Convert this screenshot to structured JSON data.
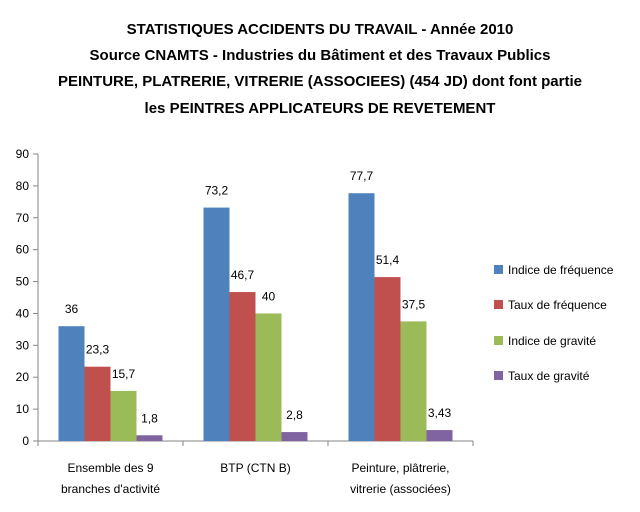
{
  "chart_data": {
    "type": "bar",
    "title_lines": [
      "STATISTIQUES ACCIDENTS DU TRAVAIL - Année 2010",
      "Source CNAMTS - Industries du Bâtiment et des Travaux Publics",
      "PEINTURE, PLATRERIE, VITRERIE (ASSOCIEES) (454 JD) dont font partie",
      "les PEINTRES APPLICATEURS DE REVETEMENT"
    ],
    "categories": [
      [
        "Ensemble des 9",
        "branches d'activité"
      ],
      [
        "BTP (CTN B)"
      ],
      [
        "Peinture, plâtrerie,",
        "vitrerie (associées)"
      ]
    ],
    "series": [
      {
        "name": "Indice de fréquence",
        "color": "#4f81bd",
        "values": [
          36,
          73.2,
          77.7
        ],
        "labels": [
          "36",
          "73,2",
          "77,7"
        ]
      },
      {
        "name": "Taux de fréquence",
        "color": "#c0504d",
        "values": [
          23.3,
          46.7,
          51.4
        ],
        "labels": [
          "23,3",
          "46,7",
          "51,4"
        ]
      },
      {
        "name": "Indice de gravité",
        "color": "#9bbb59",
        "values": [
          15.7,
          40,
          37.5
        ],
        "labels": [
          "15,7",
          "40",
          "37,5"
        ]
      },
      {
        "name": "Taux de gravité",
        "color": "#8064a2",
        "values": [
          1.8,
          2.8,
          3.43
        ],
        "labels": [
          "1,8",
          "2,8",
          "3,43"
        ]
      }
    ],
    "ylim": [
      0,
      90
    ],
    "yticks": [
      "0",
      "10",
      "20",
      "30",
      "40",
      "50",
      "60",
      "70",
      "80",
      "90"
    ],
    "legend_position": "right",
    "grid": false
  }
}
